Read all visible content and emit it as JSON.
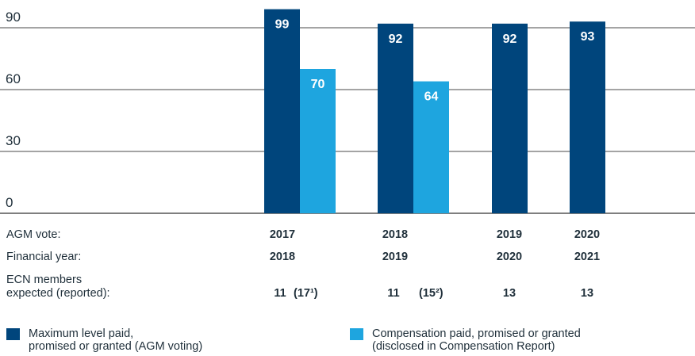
{
  "chart_data": {
    "type": "bar",
    "ylim": [
      0,
      100
    ],
    "yticks": [
      0,
      30,
      60,
      90
    ],
    "grid": true,
    "categories": [
      "2017",
      "2018",
      "2019",
      "2020"
    ],
    "series": [
      {
        "name": "Maximum level paid, promised or granted (AGM voting)",
        "color": "#00457c",
        "values": [
          99,
          92,
          92,
          93
        ]
      },
      {
        "name": "Compensation paid, promised or granted (disclosed in Compensation Report)",
        "color": "#1ea5df",
        "values": [
          70,
          64,
          null,
          null
        ]
      }
    ],
    "xlabel": "",
    "ylabel": "",
    "title": ""
  },
  "table": {
    "agm_vote_label": "AGM vote:",
    "agm_votes": [
      "2017",
      "2018",
      "2019",
      "2020"
    ],
    "financial_year_label": "Financial year:",
    "financial_years": [
      "2018",
      "2019",
      "2020",
      "2021"
    ],
    "ecn_label_line1": "ECN members",
    "ecn_label_line2": "expected (reported):",
    "ecn_expected": [
      "11",
      "11",
      "13",
      "13"
    ],
    "ecn_reported": [
      "(17¹)",
      "(15²)"
    ]
  },
  "legend": {
    "item1_line1": "Maximum level paid,",
    "item1_line2": "promised or granted (AGM voting)",
    "item2_line1": "Compensation paid, promised or granted",
    "item2_line2": "(disclosed in Compensation Report)"
  }
}
